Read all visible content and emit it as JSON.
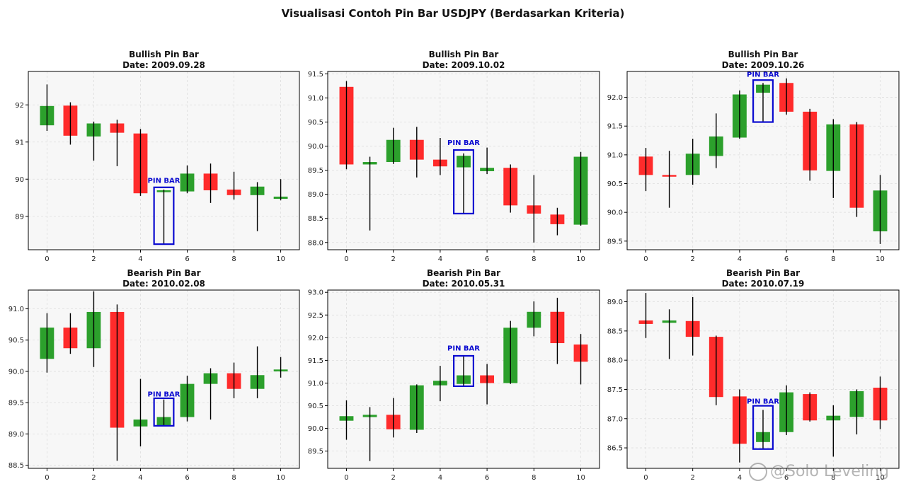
{
  "title": "Visualisasi Contoh Pin Bar USDJPY (Berdasarkan Kriteria)",
  "watermark": "@Solo Leveling",
  "colors": {
    "bull": "#2ca02c",
    "bear": "#ff2b2b",
    "wick": "#000000",
    "highlight": "#0a0ad0",
    "panel_bg": "#f7f7f7",
    "grid": "#dddddd"
  },
  "pin_label": "PIN BAR",
  "chart_data": [
    {
      "type": "candlestick",
      "title": "Bullish Pin Bar",
      "subtitle": "Date: 2009.09.28",
      "xlim": [
        -0.8,
        10.8
      ],
      "ylim": [
        88.1,
        92.9
      ],
      "xticks": [
        0,
        2,
        4,
        6,
        8,
        10
      ],
      "yticks": [
        89,
        90,
        91,
        92
      ],
      "ytick_labels": [
        "89",
        "90",
        "91",
        "92"
      ],
      "pin_index": 5,
      "box": [
        88.25,
        89.78
      ],
      "label_y": 89.9,
      "candles": [
        {
          "x": 0,
          "o": 91.45,
          "h": 92.55,
          "l": 91.3,
          "c": 91.97
        },
        {
          "x": 1,
          "o": 91.98,
          "h": 92.07,
          "l": 90.93,
          "c": 91.17
        },
        {
          "x": 2,
          "o": 91.15,
          "h": 91.55,
          "l": 90.5,
          "c": 91.5
        },
        {
          "x": 3,
          "o": 91.5,
          "h": 91.6,
          "l": 90.35,
          "c": 91.25
        },
        {
          "x": 4,
          "o": 91.23,
          "h": 91.35,
          "l": 89.55,
          "c": 89.62
        },
        {
          "x": 5,
          "o": 89.65,
          "h": 89.72,
          "l": 88.25,
          "c": 89.7
        },
        {
          "x": 6,
          "o": 89.67,
          "h": 90.37,
          "l": 89.62,
          "c": 90.15
        },
        {
          "x": 7,
          "o": 90.15,
          "h": 90.42,
          "l": 89.36,
          "c": 89.7
        },
        {
          "x": 8,
          "o": 89.72,
          "h": 90.2,
          "l": 89.45,
          "c": 89.57
        },
        {
          "x": 9,
          "o": 89.57,
          "h": 89.92,
          "l": 88.6,
          "c": 89.8
        },
        {
          "x": 10,
          "o": 89.47,
          "h": 90.0,
          "l": 89.43,
          "c": 89.53
        }
      ]
    },
    {
      "type": "candlestick",
      "title": "Bullish Pin Bar",
      "subtitle": "Date: 2009.10.02",
      "xlim": [
        -0.8,
        10.8
      ],
      "ylim": [
        87.85,
        91.55
      ],
      "xticks": [
        0,
        2,
        4,
        6,
        8,
        10
      ],
      "yticks": [
        88.0,
        88.5,
        89.0,
        89.5,
        90.0,
        90.5,
        91.0,
        91.5
      ],
      "ytick_labels": [
        "88.0",
        "88.5",
        "89.0",
        "89.5",
        "90.0",
        "90.5",
        "91.0",
        "91.5"
      ],
      "pin_index": 5,
      "box": [
        88.6,
        89.92
      ],
      "label_y": 90.02,
      "candles": [
        {
          "x": 0,
          "o": 91.23,
          "h": 91.35,
          "l": 89.52,
          "c": 89.62
        },
        {
          "x": 1,
          "o": 89.62,
          "h": 89.78,
          "l": 88.25,
          "c": 89.67
        },
        {
          "x": 2,
          "o": 89.67,
          "h": 90.38,
          "l": 89.63,
          "c": 90.13
        },
        {
          "x": 3,
          "o": 90.13,
          "h": 90.4,
          "l": 89.35,
          "c": 89.72
        },
        {
          "x": 4,
          "o": 89.72,
          "h": 90.17,
          "l": 89.4,
          "c": 89.58
        },
        {
          "x": 5,
          "o": 89.56,
          "h": 89.85,
          "l": 88.6,
          "c": 89.8
        },
        {
          "x": 6,
          "o": 89.48,
          "h": 89.97,
          "l": 89.42,
          "c": 89.55
        },
        {
          "x": 7,
          "o": 89.55,
          "h": 89.62,
          "l": 88.62,
          "c": 88.77
        },
        {
          "x": 8,
          "o": 88.77,
          "h": 89.4,
          "l": 88.0,
          "c": 88.6
        },
        {
          "x": 9,
          "o": 88.58,
          "h": 88.72,
          "l": 88.15,
          "c": 88.38
        },
        {
          "x": 10,
          "o": 88.37,
          "h": 89.88,
          "l": 88.35,
          "c": 89.78
        }
      ]
    },
    {
      "type": "candlestick",
      "title": "Bullish Pin Bar",
      "subtitle": "Date: 2009.10.26",
      "xlim": [
        -0.8,
        10.8
      ],
      "ylim": [
        89.35,
        92.45
      ],
      "xticks": [
        0,
        2,
        4,
        6,
        8,
        10
      ],
      "yticks": [
        89.5,
        90.0,
        90.5,
        91.0,
        91.5,
        92.0
      ],
      "ytick_labels": [
        "89.5",
        "90.0",
        "90.5",
        "91.0",
        "91.5",
        "92.0"
      ],
      "pin_index": 5,
      "box": [
        91.57,
        92.3
      ],
      "label_y": 92.36,
      "candles": [
        {
          "x": 0,
          "o": 90.97,
          "h": 91.12,
          "l": 90.37,
          "c": 90.65
        },
        {
          "x": 1,
          "o": 90.65,
          "h": 91.07,
          "l": 90.08,
          "c": 90.62
        },
        {
          "x": 2,
          "o": 90.65,
          "h": 91.28,
          "l": 90.48,
          "c": 91.02
        },
        {
          "x": 3,
          "o": 90.98,
          "h": 91.72,
          "l": 90.77,
          "c": 91.32
        },
        {
          "x": 4,
          "o": 91.3,
          "h": 92.12,
          "l": 91.28,
          "c": 92.05
        },
        {
          "x": 5,
          "o": 92.08,
          "h": 92.25,
          "l": 91.57,
          "c": 92.22
        },
        {
          "x": 6,
          "o": 92.25,
          "h": 92.33,
          "l": 91.7,
          "c": 91.75
        },
        {
          "x": 7,
          "o": 91.75,
          "h": 91.8,
          "l": 90.55,
          "c": 90.73
        },
        {
          "x": 8,
          "o": 90.72,
          "h": 91.62,
          "l": 90.25,
          "c": 91.53
        },
        {
          "x": 9,
          "o": 91.53,
          "h": 91.57,
          "l": 89.92,
          "c": 90.08
        },
        {
          "x": 10,
          "o": 89.67,
          "h": 90.65,
          "l": 89.45,
          "c": 90.38
        }
      ]
    },
    {
      "type": "candlestick",
      "title": "Bearish Pin Bar",
      "subtitle": "Date: 2010.02.08",
      "xlim": [
        -0.8,
        10.8
      ],
      "ylim": [
        88.45,
        91.3
      ],
      "xticks": [
        0,
        2,
        4,
        6,
        8,
        10
      ],
      "yticks": [
        88.5,
        89.0,
        89.5,
        90.0,
        90.5,
        91.0
      ],
      "ytick_labels": [
        "88.5",
        "89.0",
        "89.5",
        "90.0",
        "90.5",
        "91.0"
      ],
      "pin_index": 5,
      "box": [
        89.13,
        89.57
      ],
      "label_y": 89.6,
      "candles": [
        {
          "x": 0,
          "o": 90.2,
          "h": 90.93,
          "l": 89.98,
          "c": 90.7
        },
        {
          "x": 1,
          "o": 90.7,
          "h": 90.93,
          "l": 90.28,
          "c": 90.37
        },
        {
          "x": 2,
          "o": 90.37,
          "h": 91.28,
          "l": 90.07,
          "c": 90.95
        },
        {
          "x": 3,
          "o": 90.95,
          "h": 91.07,
          "l": 88.57,
          "c": 89.1
        },
        {
          "x": 4,
          "o": 89.12,
          "h": 89.88,
          "l": 88.8,
          "c": 89.23
        },
        {
          "x": 5,
          "o": 89.14,
          "h": 89.55,
          "l": 89.13,
          "c": 89.27
        },
        {
          "x": 6,
          "o": 89.27,
          "h": 89.93,
          "l": 89.2,
          "c": 89.8
        },
        {
          "x": 7,
          "o": 89.8,
          "h": 90.05,
          "l": 89.23,
          "c": 89.97
        },
        {
          "x": 8,
          "o": 89.97,
          "h": 90.14,
          "l": 89.57,
          "c": 89.72
        },
        {
          "x": 9,
          "o": 89.72,
          "h": 90.4,
          "l": 89.57,
          "c": 89.94
        },
        {
          "x": 10,
          "o": 90.0,
          "h": 90.23,
          "l": 89.9,
          "c": 90.03
        }
      ]
    },
    {
      "type": "candlestick",
      "title": "Bearish Pin Bar",
      "subtitle": "Date: 2010.05.31",
      "xlim": [
        -0.8,
        10.8
      ],
      "ylim": [
        89.12,
        93.05
      ],
      "xticks": [
        0,
        2,
        4,
        6,
        8,
        10
      ],
      "yticks": [
        89.5,
        90.0,
        90.5,
        91.0,
        91.5,
        92.0,
        92.5,
        93.0
      ],
      "ytick_labels": [
        "89.5",
        "90.0",
        "90.5",
        "91.0",
        "91.5",
        "92.0",
        "92.5",
        "93.0"
      ],
      "pin_index": 5,
      "box": [
        90.93,
        91.6
      ],
      "label_y": 91.72,
      "candles": [
        {
          "x": 0,
          "o": 90.17,
          "h": 90.62,
          "l": 89.75,
          "c": 90.27
        },
        {
          "x": 1,
          "o": 90.25,
          "h": 90.47,
          "l": 89.28,
          "c": 90.3
        },
        {
          "x": 2,
          "o": 90.3,
          "h": 90.67,
          "l": 89.8,
          "c": 89.98
        },
        {
          "x": 3,
          "o": 89.97,
          "h": 90.97,
          "l": 89.9,
          "c": 90.95
        },
        {
          "x": 4,
          "o": 90.95,
          "h": 91.38,
          "l": 90.6,
          "c": 91.05
        },
        {
          "x": 5,
          "o": 90.98,
          "h": 91.6,
          "l": 90.93,
          "c": 91.17
        },
        {
          "x": 6,
          "o": 91.17,
          "h": 91.42,
          "l": 90.53,
          "c": 91.0
        },
        {
          "x": 7,
          "o": 91.0,
          "h": 92.37,
          "l": 90.98,
          "c": 92.22
        },
        {
          "x": 8,
          "o": 92.22,
          "h": 92.8,
          "l": 92.03,
          "c": 92.57
        },
        {
          "x": 9,
          "o": 92.57,
          "h": 92.88,
          "l": 91.42,
          "c": 91.88
        },
        {
          "x": 10,
          "o": 91.85,
          "h": 92.08,
          "l": 90.97,
          "c": 91.47
        }
      ]
    },
    {
      "type": "candlestick",
      "title": "Bearish Pin Bar",
      "subtitle": "Date: 2010.07.19",
      "xlim": [
        -0.8,
        10.8
      ],
      "ylim": [
        86.15,
        89.2
      ],
      "xticks": [
        0,
        2,
        4,
        6,
        8,
        10
      ],
      "yticks": [
        86.5,
        87.0,
        87.5,
        88.0,
        88.5,
        89.0
      ],
      "ytick_labels": [
        "86.5",
        "87.0",
        "87.5",
        "88.0",
        "88.5",
        "89.0"
      ],
      "pin_index": 5,
      "box": [
        86.48,
        87.22
      ],
      "label_y": 87.26,
      "candles": [
        {
          "x": 0,
          "o": 88.68,
          "h": 89.15,
          "l": 88.38,
          "c": 88.62
        },
        {
          "x": 1,
          "o": 88.64,
          "h": 88.87,
          "l": 88.02,
          "c": 88.68
        },
        {
          "x": 2,
          "o": 88.67,
          "h": 89.08,
          "l": 88.08,
          "c": 88.4
        },
        {
          "x": 3,
          "o": 88.4,
          "h": 88.42,
          "l": 87.23,
          "c": 87.37
        },
        {
          "x": 4,
          "o": 87.38,
          "h": 87.5,
          "l": 86.25,
          "c": 86.57
        },
        {
          "x": 5,
          "o": 86.6,
          "h": 87.15,
          "l": 86.48,
          "c": 86.77
        },
        {
          "x": 6,
          "o": 86.77,
          "h": 87.57,
          "l": 86.72,
          "c": 87.45
        },
        {
          "x": 7,
          "o": 87.42,
          "h": 87.45,
          "l": 86.95,
          "c": 86.97
        },
        {
          "x": 8,
          "o": 86.97,
          "h": 87.23,
          "l": 86.35,
          "c": 87.05
        },
        {
          "x": 9,
          "o": 87.03,
          "h": 87.5,
          "l": 86.73,
          "c": 87.47
        },
        {
          "x": 10,
          "o": 87.53,
          "h": 87.72,
          "l": 86.82,
          "c": 86.97
        }
      ]
    }
  ]
}
